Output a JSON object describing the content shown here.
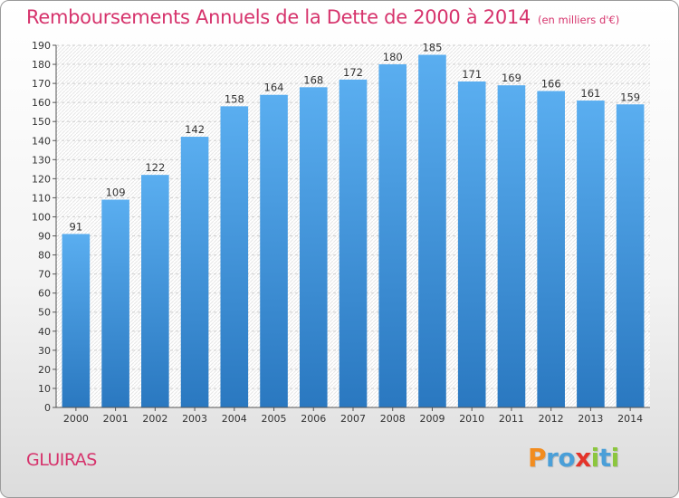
{
  "title": "Remboursements Annuels de la Dette de 2000 à 2014",
  "unit": "(en milliers d'€)",
  "commune": "GLUIRAS",
  "logo": {
    "letters": [
      "P",
      "r",
      "o",
      "x",
      "i",
      "t",
      "i"
    ],
    "colors": [
      "#f28c1e",
      "#4a9fd8",
      "#4a9fd8",
      "#e4342a",
      "#8cc63e",
      "#4a9fd8",
      "#8cc63e"
    ]
  },
  "chart_data": {
    "type": "bar",
    "title": "Remboursements Annuels de la Dette de 2000 à 2014",
    "categories": [
      "2000",
      "2001",
      "2002",
      "2003",
      "2004",
      "2005",
      "2006",
      "2007",
      "2008",
      "2009",
      "2010",
      "2011",
      "2012",
      "2013",
      "2014"
    ],
    "values": [
      91,
      109,
      122,
      142,
      158,
      164,
      168,
      172,
      180,
      185,
      171,
      169,
      166,
      161,
      159
    ],
    "ylim": [
      0,
      190
    ],
    "ytick_step": 10,
    "grid": true,
    "bar_color": "#3d8fd6"
  }
}
